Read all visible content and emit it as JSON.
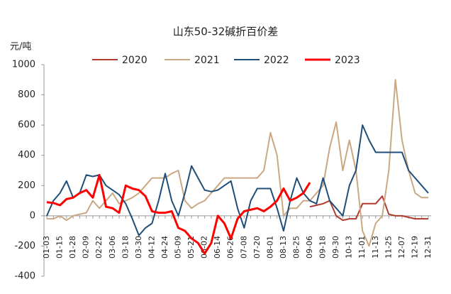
{
  "chart_data": {
    "type": "line",
    "title": "山东50-32碱折百价差",
    "y_label": "元/吨",
    "categories": [
      "01-03",
      null,
      "01-15",
      null,
      "01-28",
      null,
      "02-09",
      null,
      "02-22",
      null,
      "03-06",
      null,
      "03-18",
      null,
      "03-30",
      null,
      "04-12",
      null,
      "04-24",
      null,
      "05-09",
      null,
      "05-21",
      null,
      "06-02",
      null,
      "06-14",
      null,
      "06-26",
      null,
      "07-08",
      null,
      "07-20",
      null,
      "08-01",
      null,
      "08-13",
      null,
      "08-25",
      null,
      "09-06",
      null,
      "09-18",
      null,
      "09-30",
      null,
      "10-13",
      null,
      "11-01",
      null,
      "11-13",
      null,
      "11-25",
      null,
      "12-07",
      null,
      "12-19",
      null,
      "12-31"
    ],
    "series": [
      {
        "name": "2020",
        "color": "#b03a2e",
        "width": 2,
        "values": [
          null,
          null,
          null,
          null,
          null,
          null,
          null,
          null,
          null,
          null,
          null,
          null,
          null,
          null,
          null,
          null,
          null,
          null,
          null,
          null,
          null,
          null,
          null,
          null,
          null,
          null,
          null,
          null,
          null,
          null,
          null,
          null,
          null,
          null,
          null,
          null,
          null,
          null,
          null,
          null,
          60,
          70,
          80,
          100,
          0,
          -30,
          -20,
          -20,
          80,
          80,
          80,
          130,
          10,
          0,
          0,
          -10,
          -20,
          -20,
          -20
        ]
      },
      {
        "name": "2021",
        "color": "#c9a883",
        "width": 2,
        "values": [
          -20,
          -20,
          0,
          -30,
          0,
          10,
          20,
          100,
          50,
          100,
          150,
          80,
          100,
          120,
          150,
          200,
          250,
          250,
          250,
          280,
          300,
          100,
          50,
          80,
          100,
          150,
          200,
          250,
          250,
          250,
          250,
          250,
          250,
          300,
          550,
          400,
          0,
          50,
          50,
          100,
          100,
          150,
          200,
          450,
          620,
          300,
          500,
          300,
          -100,
          -200,
          -50,
          0,
          300,
          900,
          500,
          300,
          150,
          120,
          120
        ]
      },
      {
        "name": "2022",
        "color": "#1f4e79",
        "width": 2,
        "values": [
          0,
          100,
          150,
          230,
          120,
          150,
          270,
          260,
          270,
          200,
          170,
          140,
          80,
          -20,
          -130,
          -80,
          -50,
          100,
          280,
          100,
          0,
          150,
          330,
          250,
          170,
          160,
          170,
          200,
          230,
          50,
          -80,
          100,
          180,
          180,
          180,
          50,
          -100,
          100,
          250,
          150,
          100,
          80,
          250,
          100,
          50,
          0,
          200,
          300,
          600,
          500,
          420,
          420,
          420,
          420,
          420,
          300,
          250,
          200,
          150
        ]
      },
      {
        "name": "2023",
        "color": "#ff0000",
        "width": 3,
        "values": [
          90,
          85,
          70,
          110,
          120,
          150,
          170,
          120,
          270,
          60,
          50,
          20,
          200,
          180,
          170,
          130,
          30,
          20,
          20,
          30,
          -80,
          -100,
          -150,
          -180,
          -250,
          -180,
          0,
          -50,
          -150,
          -20,
          30,
          40,
          50,
          30,
          60,
          100,
          180,
          100,
          120,
          150,
          220,
          null,
          null,
          null,
          null,
          null,
          null,
          null,
          null,
          null,
          null,
          null,
          null,
          null,
          null,
          null,
          null,
          null,
          null
        ]
      }
    ],
    "ylim": [
      -400,
      1000
    ],
    "yticks": [
      -400,
      -200,
      0,
      200,
      400,
      600,
      800,
      1000
    ],
    "grid": false
  }
}
